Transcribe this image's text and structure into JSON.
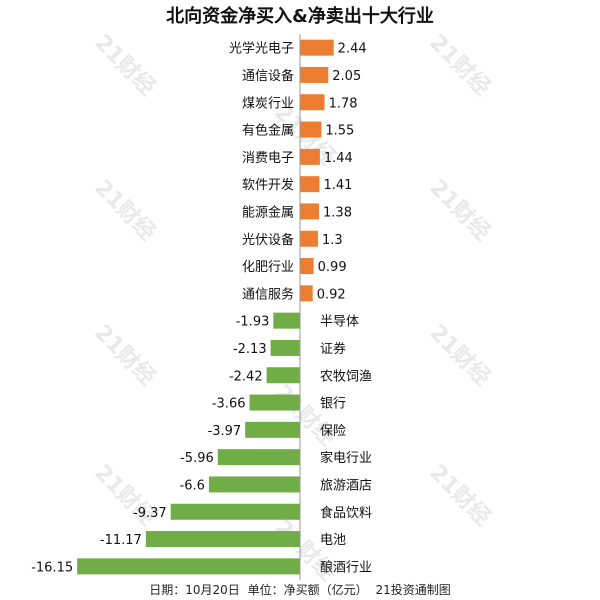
{
  "chart_data": {
    "type": "bar",
    "orientation": "horizontal",
    "title": "北向资金净买入&净卖出十大行业",
    "categories": [
      "光学光电子",
      "通信设备",
      "煤炭行业",
      "有色金属",
      "消费电子",
      "软件开发",
      "能源金属",
      "光伏设备",
      "化肥行业",
      "通信服务",
      "半导体",
      "证券",
      "农牧饲渔",
      "银行",
      "保险",
      "家电行业",
      "旅游酒店",
      "食品饮料",
      "电池",
      "酿酒行业"
    ],
    "values": [
      2.44,
      2.05,
      1.78,
      1.55,
      1.44,
      1.41,
      1.38,
      1.3,
      0.99,
      0.92,
      -1.93,
      -2.13,
      -2.42,
      -3.66,
      -3.97,
      -5.96,
      -6.6,
      -9.37,
      -11.17,
      -16.15
    ],
    "value_labels": [
      "2.44",
      "2.05",
      "1.78",
      "1.55",
      "1.44",
      "1.41",
      "1.38",
      "1.3",
      "0.99",
      "0.92",
      "-1.93",
      "-2.13",
      "-2.42",
      "-3.66",
      "-3.97",
      "-5.96",
      "-6.6",
      "-9.37",
      "-11.17",
      "-16.15"
    ],
    "colors": {
      "positive": "#ed7d31",
      "negative": "#70ad47"
    },
    "xlim": [
      -16.15,
      2.44
    ],
    "grid": false,
    "legend": "none"
  },
  "footer": {
    "date": "日期：10月20日",
    "unit": "单位：净买额（亿元）",
    "source": "21投资通制图"
  },
  "watermark": {
    "text": "21财经"
  }
}
